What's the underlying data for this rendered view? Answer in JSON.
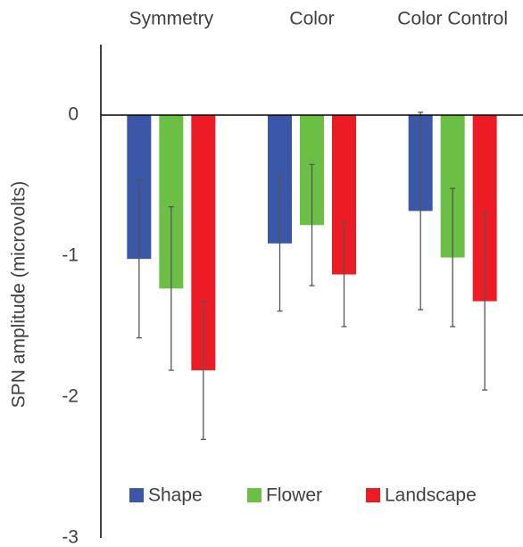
{
  "chart_data": {
    "type": "bar",
    "y_label": "SPN amplitude (microvolts)",
    "categories": [
      "Symmetry",
      "Color",
      "Color Control"
    ],
    "series": [
      {
        "name": "Shape",
        "color": "#3a57a8",
        "values": [
          -1.02,
          -0.91,
          -0.68
        ],
        "errors": [
          0.56,
          0.48,
          0.7
        ]
      },
      {
        "name": "Flower",
        "color": "#6cbf45",
        "values": [
          -1.23,
          -0.78,
          -1.01
        ],
        "errors": [
          0.58,
          0.43,
          0.49
        ]
      },
      {
        "name": "Landscape",
        "color": "#ed1c24",
        "values": [
          -1.81,
          -1.13,
          -1.32
        ],
        "errors": [
          0.49,
          0.37,
          0.63
        ]
      }
    ],
    "ylim": [
      -3,
      0.5
    ],
    "yticks": [
      0,
      -1,
      -2,
      -3
    ],
    "legend": "bottom"
  }
}
